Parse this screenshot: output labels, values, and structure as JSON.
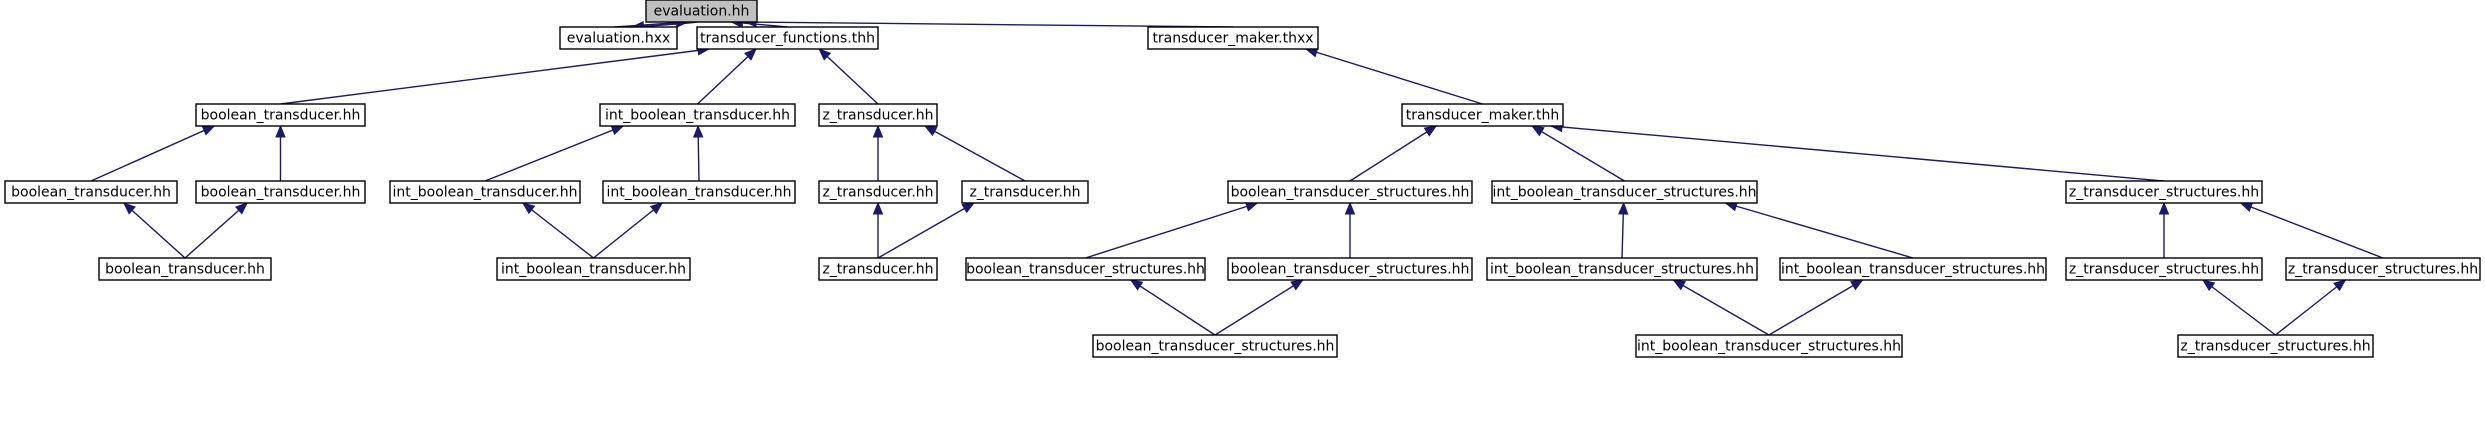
{
  "graph": {
    "edge_color": "#191970",
    "root_fill": "#c0c0c0",
    "node_fill": "#ffffff",
    "nodes": [
      {
        "id": "n0",
        "label": "evaluation.hh",
        "root": true
      },
      {
        "id": "n1",
        "label": "evaluation.hxx"
      },
      {
        "id": "n2",
        "label": "transducer_functions.thh"
      },
      {
        "id": "n3",
        "label": "transducer_maker.thxx"
      },
      {
        "id": "n4",
        "label": "boolean_transducer.hh"
      },
      {
        "id": "n5",
        "label": "int_boolean_transducer.hh"
      },
      {
        "id": "n6",
        "label": "z_transducer.hh"
      },
      {
        "id": "n7",
        "label": "transducer_maker.thh"
      },
      {
        "id": "n8",
        "label": "boolean_transducer.hh"
      },
      {
        "id": "n9",
        "label": "boolean_transducer.hh"
      },
      {
        "id": "n10",
        "label": "int_boolean_transducer.hh"
      },
      {
        "id": "n11",
        "label": "int_boolean_transducer.hh"
      },
      {
        "id": "n12",
        "label": "z_transducer.hh"
      },
      {
        "id": "n13",
        "label": "z_transducer.hh"
      },
      {
        "id": "n14",
        "label": "boolean_transducer_structures.hh"
      },
      {
        "id": "n15",
        "label": "int_boolean_transducer_structures.hh"
      },
      {
        "id": "n16",
        "label": "z_transducer_structures.hh"
      },
      {
        "id": "n17",
        "label": "boolean_transducer.hh"
      },
      {
        "id": "n18",
        "label": "int_boolean_transducer.hh"
      },
      {
        "id": "n19",
        "label": "z_transducer.hh"
      },
      {
        "id": "n20",
        "label": "boolean_transducer_structures.hh"
      },
      {
        "id": "n21",
        "label": "boolean_transducer_structures.hh"
      },
      {
        "id": "n22",
        "label": "int_boolean_transducer_structures.hh"
      },
      {
        "id": "n23",
        "label": "int_boolean_transducer_structures.hh"
      },
      {
        "id": "n24",
        "label": "z_transducer_structures.hh"
      },
      {
        "id": "n25",
        "label": "z_transducer_structures.hh"
      },
      {
        "id": "n26",
        "label": "boolean_transducer_structures.hh"
      },
      {
        "id": "n27",
        "label": "int_boolean_transducer_structures.hh"
      },
      {
        "id": "n28",
        "label": "z_transducer_structures.hh"
      }
    ],
    "edges": [
      [
        "n1",
        "n0"
      ],
      [
        "n0",
        "n1"
      ],
      [
        "n2",
        "n0"
      ],
      [
        "n3",
        "n0"
      ],
      [
        "n4",
        "n2"
      ],
      [
        "n5",
        "n2"
      ],
      [
        "n6",
        "n2"
      ],
      [
        "n7",
        "n3"
      ],
      [
        "n8",
        "n4"
      ],
      [
        "n9",
        "n4"
      ],
      [
        "n10",
        "n5"
      ],
      [
        "n11",
        "n5"
      ],
      [
        "n12",
        "n6"
      ],
      [
        "n13",
        "n6"
      ],
      [
        "n14",
        "n7"
      ],
      [
        "n15",
        "n7"
      ],
      [
        "n16",
        "n7"
      ],
      [
        "n17",
        "n8"
      ],
      [
        "n17",
        "n9"
      ],
      [
        "n18",
        "n10"
      ],
      [
        "n18",
        "n11"
      ],
      [
        "n19",
        "n12"
      ],
      [
        "n19",
        "n13"
      ],
      [
        "n20",
        "n14"
      ],
      [
        "n21",
        "n14"
      ],
      [
        "n22",
        "n15"
      ],
      [
        "n23",
        "n15"
      ],
      [
        "n24",
        "n16"
      ],
      [
        "n25",
        "n16"
      ],
      [
        "n26",
        "n20"
      ],
      [
        "n26",
        "n21"
      ],
      [
        "n27",
        "n22"
      ],
      [
        "n27",
        "n23"
      ],
      [
        "n28",
        "n24"
      ],
      [
        "n28",
        "n25"
      ]
    ]
  }
}
